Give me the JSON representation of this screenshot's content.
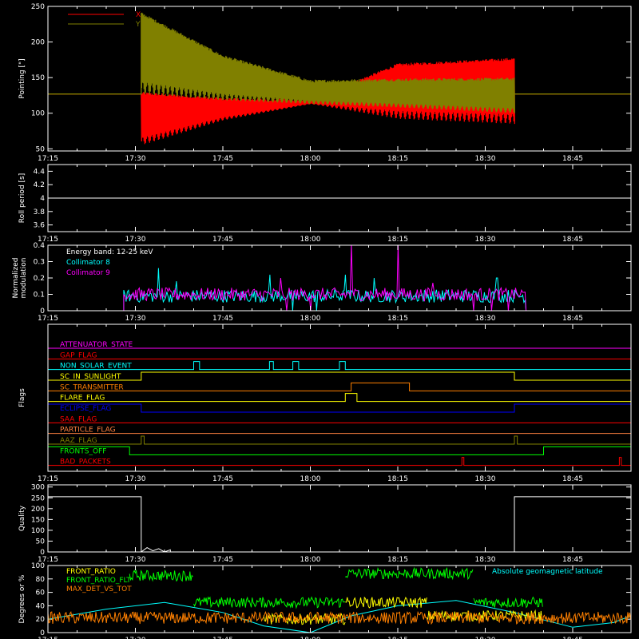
{
  "page": {
    "background": "#000000",
    "foreground": "#ffffff"
  },
  "time_axis": {
    "range": [
      "17:15",
      "18:55"
    ],
    "ticks": [
      "17:15",
      "17:30",
      "17:45",
      "18:00",
      "18:15",
      "18:30",
      "18:45"
    ]
  },
  "chart_data": [
    {
      "id": "pointing",
      "type": "line",
      "ylabel": "Pointing [\"]",
      "ylim": [
        47,
        250
      ],
      "yticks": [
        50,
        100,
        150,
        200,
        250
      ],
      "legend": {
        "placement": "top-left",
        "entries": [
          {
            "name": "X",
            "color": "#ff0000"
          },
          {
            "name": "Y",
            "color": "#808000"
          }
        ]
      },
      "series": [
        {
          "name": "X",
          "color": "#ff0000",
          "baseline": 127,
          "active": [
            "17:31",
            "18:35"
          ],
          "envelope_x": [
            "17:31",
            "17:45",
            "18:00",
            "18:15",
            "18:35"
          ],
          "lower": [
            55,
            90,
            113,
            92,
            85
          ],
          "upper": [
            128,
            120,
            118,
            168,
            176
          ]
        },
        {
          "name": "Y",
          "color": "#808000",
          "baseline": 127,
          "active": [
            "17:31",
            "18:35"
          ],
          "envelope_x": [
            "17:31",
            "17:45",
            "18:00",
            "18:15",
            "18:35"
          ],
          "lower": [
            127,
            118,
            113,
            108,
            100
          ],
          "upper": [
            240,
            180,
            145,
            147,
            148
          ]
        }
      ]
    },
    {
      "id": "roll",
      "type": "line",
      "ylabel": "Roll period [s]",
      "ylim": [
        3.5,
        4.5
      ],
      "yticks": [
        3.6,
        3.8,
        4.0,
        4.2,
        4.4
      ],
      "series": [
        {
          "color": "#ffffff",
          "x": [
            "17:15",
            "18:55"
          ],
          "y": [
            4.0,
            4.0
          ]
        }
      ]
    },
    {
      "id": "modulation",
      "type": "line",
      "ylabel": [
        "Normalized",
        "modulation"
      ],
      "ylim": [
        0,
        0.4
      ],
      "yticks": [
        0.0,
        0.1,
        0.2,
        0.3,
        0.4
      ],
      "annotation": "Energy band: 12-25 keV",
      "legend": {
        "placement": "top-left",
        "entries": [
          {
            "name": "Collimator 8",
            "color": "#00ffff"
          },
          {
            "name": "Collimator 9",
            "color": "#ff00ff"
          }
        ]
      },
      "series": [
        {
          "name": "Collimator 8",
          "color": "#00ffff",
          "active": [
            "17:28",
            "18:37"
          ],
          "typical": 0.09,
          "spikes": [
            {
              "x": "17:34",
              "y": 0.26
            },
            {
              "x": "17:37",
              "y": 0.18
            },
            {
              "x": "17:53",
              "y": 0.22
            },
            {
              "x": "18:06",
              "y": 0.22
            },
            {
              "x": "18:11",
              "y": 0.2
            },
            {
              "x": "18:32",
              "y": 0.2
            }
          ],
          "dropouts": [
            "17:57",
            "18:01"
          ]
        },
        {
          "name": "Collimator 9",
          "color": "#ff00ff",
          "active": [
            "17:28",
            "18:37"
          ],
          "typical": 0.1,
          "spikes": [
            {
              "x": "18:07",
              "y": 0.41
            },
            {
              "x": "18:15",
              "y": 0.41
            },
            {
              "x": "17:55",
              "y": 0.2
            },
            {
              "x": "18:21",
              "y": 0.17
            }
          ],
          "dropouts": [
            "17:56",
            "18:00",
            "18:28",
            "18:31",
            "18:34"
          ]
        }
      ]
    },
    {
      "id": "flags",
      "type": "line",
      "ylabel": "Flags",
      "flags": [
        {
          "name": "ATTENUATOR_STATE",
          "color": "#ff00ff",
          "high": []
        },
        {
          "name": "GAP_FLAG",
          "color": "#ff0000",
          "high": []
        },
        {
          "name": "NON_SOLAR_EVENT",
          "color": "#00ffff",
          "high": [
            [
              "17:40",
              "17:41"
            ],
            [
              "17:53",
              "17:53:40"
            ],
            [
              "17:57",
              "17:58"
            ],
            [
              "18:05",
              "18:06"
            ]
          ]
        },
        {
          "name": "SC_IN_SUNLIGHT",
          "color": "#ffff00",
          "high": [
            [
              "17:31",
              "18:35"
            ]
          ]
        },
        {
          "name": "SC_TRANSMITTER",
          "color": "#ff8000",
          "high": [
            [
              "18:07",
              "18:17"
            ]
          ]
        },
        {
          "name": "FLARE_FLAG",
          "color": "#ffff00",
          "high": [
            [
              "18:06",
              "18:08"
            ]
          ]
        },
        {
          "name": "ECLIPSE_FLAG",
          "color": "#0000ff",
          "high": [
            [
              "17:15",
              "17:31"
            ],
            [
              "18:35",
              "18:55"
            ]
          ]
        },
        {
          "name": "SAA_FLAG",
          "color": "#ff0000",
          "high": []
        },
        {
          "name": "PARTICLE_FLAG",
          "color": "#ff8040",
          "high": []
        },
        {
          "name": "AAZ_FLAG",
          "color": "#808000",
          "high": [
            [
              "17:31",
              "17:31:30"
            ],
            [
              "18:35",
              "18:35:30"
            ]
          ]
        },
        {
          "name": "FRONTS_OFF",
          "color": "#00ff00",
          "high": [
            [
              "17:15",
              "17:29"
            ],
            [
              "18:40",
              "18:55"
            ]
          ]
        },
        {
          "name": "BAD_PACKETS",
          "color": "#ff0000",
          "high": [
            [
              "18:26",
              "18:26:20"
            ],
            [
              "18:53",
              "18:53:20"
            ]
          ]
        }
      ]
    },
    {
      "id": "quality",
      "type": "line",
      "ylabel": "Quality",
      "ylim": [
        0,
        310
      ],
      "yticks": [
        0,
        50,
        100,
        150,
        200,
        250,
        300
      ],
      "series": [
        {
          "color": "#ffffff",
          "x": [
            "17:15",
            "17:31",
            "17:31",
            "17:32",
            "17:33",
            "17:34",
            "17:35",
            "17:36",
            "17:36",
            "18:35",
            "18:35",
            "18:55"
          ],
          "y": [
            255,
            255,
            0,
            20,
            5,
            15,
            0,
            10,
            0,
            0,
            255,
            255
          ]
        }
      ]
    },
    {
      "id": "ratios",
      "type": "line",
      "ylabel": "Degrees or %",
      "ylim": [
        0,
        100
      ],
      "yticks": [
        0,
        20,
        40,
        60,
        80,
        100
      ],
      "annotation": "Absolute geomagnetic latitude",
      "annotation_color": "#00ffff",
      "legend": {
        "placement": "top-left",
        "entries": [
          {
            "name": "FRONT_RATIO",
            "color": "#ffff00"
          },
          {
            "name": "FRONT_RATIO_FLT",
            "color": "#00ff00"
          },
          {
            "name": "MAX_DET_VS_TOT",
            "color": "#ff8000"
          }
        ]
      },
      "series": [
        {
          "name": "Absolute geomagnetic latitude",
          "color": "#00ffff",
          "x": [
            "17:15",
            "17:25",
            "17:35",
            "17:45",
            "17:52",
            "18:00",
            "18:07",
            "18:15",
            "18:25",
            "18:35",
            "18:45",
            "18:52",
            "18:55"
          ],
          "y": [
            20,
            35,
            45,
            30,
            10,
            0,
            25,
            40,
            48,
            30,
            8,
            15,
            25
          ]
        },
        {
          "name": "FRONT_RATIO_FLT",
          "color": "#00ff00",
          "segments": [
            {
              "from": "17:29",
              "to": "17:40",
              "level": 85
            },
            {
              "from": "17:40",
              "to": "18:06",
              "level": 45
            },
            {
              "from": "18:06",
              "to": "18:28",
              "level": 88
            },
            {
              "from": "18:28",
              "to": "18:40",
              "level": 45
            }
          ]
        },
        {
          "name": "FRONT_RATIO",
          "color": "#ffff00",
          "segments": [
            {
              "from": "17:52",
              "to": "18:06",
              "level": 20
            },
            {
              "from": "18:06",
              "to": "18:20",
              "level": 45
            },
            {
              "from": "18:20",
              "to": "18:40",
              "level": 25
            }
          ]
        },
        {
          "name": "MAX_DET_VS_TOT",
          "color": "#ff8000",
          "typical": 22
        }
      ]
    }
  ]
}
